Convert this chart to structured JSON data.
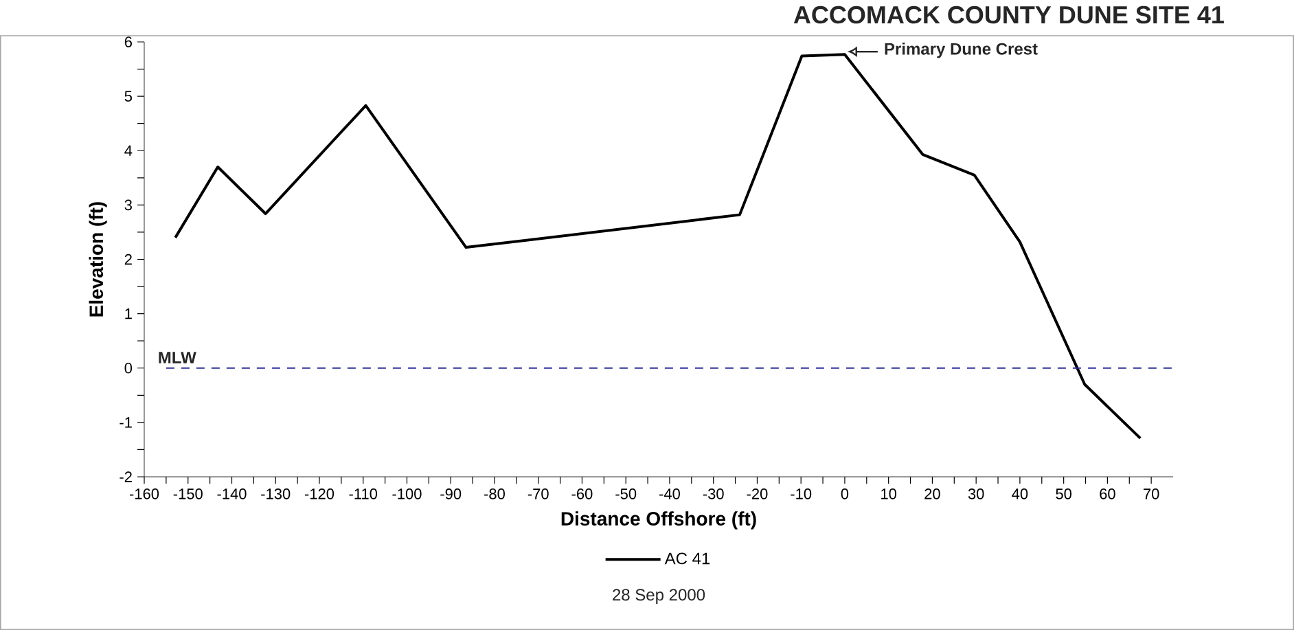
{
  "chart_data": {
    "type": "line",
    "title": "ACCOMACK COUNTY DUNE SITE 41",
    "xlabel": "Distance Offshore (ft)",
    "ylabel": "Elevation (ft)",
    "x": [
      -152.9,
      -143.2,
      -132.3,
      -109.4,
      -86.5,
      -24.0,
      -9.8,
      0,
      17.8,
      29.6,
      40.0,
      54.8,
      67.5
    ],
    "series": [
      {
        "name": "AC 41",
        "color": "#000000",
        "values": [
          2.4,
          3.7,
          2.84,
          4.83,
          2.22,
          2.82,
          5.74,
          5.77,
          3.93,
          3.55,
          2.32,
          -0.3,
          -1.29
        ]
      }
    ],
    "xlim": [
      -160,
      75
    ],
    "ylim": [
      -2,
      6
    ],
    "xticks": [
      -160,
      -150,
      -140,
      -130,
      -120,
      -110,
      -100,
      -90,
      -80,
      -70,
      -60,
      -50,
      -40,
      -30,
      -20,
      -10,
      0,
      10,
      20,
      30,
      40,
      50,
      60,
      70,
      {
        "value": -155,
        "label": null
      },
      {
        "value": -145,
        "label": null
      },
      {
        "value": -135,
        "label": null
      },
      {
        "value": -125,
        "label": null
      },
      {
        "value": -115,
        "label": null
      },
      {
        "value": -105,
        "label": null
      },
      {
        "value": -95,
        "label": null
      },
      {
        "value": -85,
        "label": null
      },
      {
        "value": -75,
        "label": null
      },
      {
        "value": -65,
        "label": null
      },
      {
        "value": -55,
        "label": null
      },
      {
        "value": -45,
        "label": null
      },
      {
        "value": -35,
        "label": null
      },
      {
        "value": -25,
        "label": null
      },
      {
        "value": -15,
        "label": null
      },
      {
        "value": -5,
        "label": null
      },
      {
        "value": 5,
        "label": null
      },
      {
        "value": 15,
        "label": null
      },
      {
        "value": 25,
        "label": null
      },
      {
        "value": 35,
        "label": null
      },
      {
        "value": 45,
        "label": null
      },
      {
        "value": 55,
        "label": null
      },
      {
        "value": 65,
        "label": null
      }
    ],
    "yticks": [
      -2,
      -1,
      0,
      1,
      2,
      3,
      4,
      5,
      6,
      {
        "value": -1.5,
        "label": null
      },
      {
        "value": -0.5,
        "label": null
      },
      {
        "value": 0.5,
        "label": null
      },
      {
        "value": 1.5,
        "label": null
      },
      {
        "value": 2.5,
        "label": null
      },
      {
        "value": 3.5,
        "label": null
      },
      {
        "value": 4.5,
        "label": null
      },
      {
        "value": 5.5,
        "label": null
      }
    ],
    "ref_lines": [
      {
        "axis": "y",
        "value": 0,
        "label": "MLW",
        "color": "#2e3192",
        "line_style": "dashed"
      }
    ],
    "annotations": [
      {
        "text": "Primary Dune Crest",
        "x": 0,
        "y": 5.77
      },
      "28 Sep 2000"
    ],
    "legend": "bottom",
    "line_style": "solid"
  }
}
